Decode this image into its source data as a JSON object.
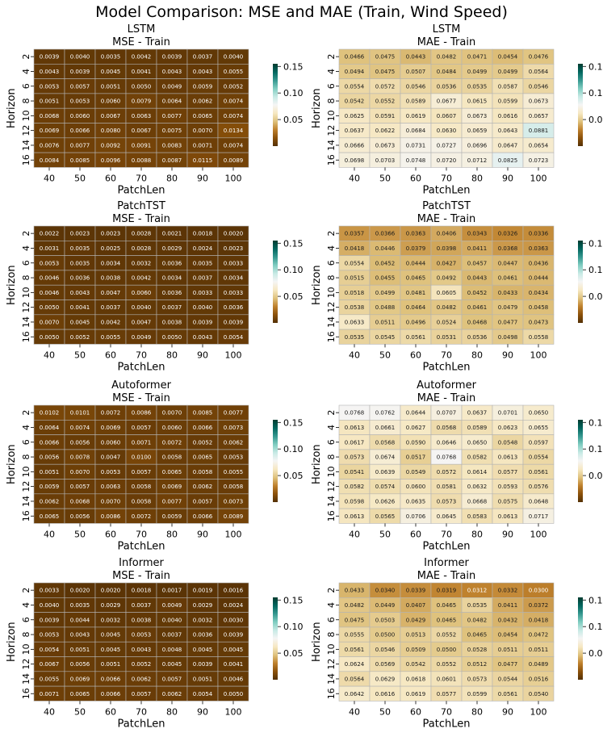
{
  "figure_title": "Model Comparison: MSE and MAE (Train, Wind Speed)",
  "shared_axes": {
    "xlabel": "PatchLen",
    "ylabel": "Horizon",
    "x_ticks": [
      "40",
      "50",
      "60",
      "70",
      "80",
      "90",
      "100"
    ],
    "y_ticks": [
      "2",
      "4",
      "6",
      "8",
      "10",
      "12",
      "14",
      "16"
    ]
  },
  "colorbar": {
    "ticks": [
      "0.15",
      "0.10",
      "0.05"
    ],
    "tick_values": [
      0.15,
      0.1,
      0.05
    ],
    "vmin": 0,
    "vmax": 0.155,
    "colormap": "BrBG",
    "colors": [
      "#543005",
      "#8c510a",
      "#bf812d",
      "#dfc27d",
      "#f6e8c3",
      "#f5f5f5",
      "#c7eae5",
      "#80cdc1",
      "#35978f",
      "#01665e",
      "#003c30"
    ]
  },
  "chart_data": [
    {
      "type": "heatmap",
      "model": "LSTM",
      "metric": "MSE - Train",
      "values": [
        [
          0.0039,
          0.004,
          0.0035,
          0.0042,
          0.0039,
          0.0037,
          0.004
        ],
        [
          0.0043,
          0.0039,
          0.0045,
          0.0041,
          0.0043,
          0.0043,
          0.0055
        ],
        [
          0.0053,
          0.0057,
          0.0051,
          0.005,
          0.0049,
          0.0059,
          0.0052
        ],
        [
          0.0051,
          0.0053,
          0.006,
          0.0079,
          0.0064,
          0.0062,
          0.0074
        ],
        [
          0.0068,
          0.006,
          0.0067,
          0.0063,
          0.0077,
          0.0065,
          0.0074
        ],
        [
          0.0069,
          0.0066,
          0.008,
          0.0067,
          0.0075,
          0.007,
          0.0134
        ],
        [
          0.0076,
          0.0077,
          0.0092,
          0.0091,
          0.0083,
          0.0071,
          0.0074
        ],
        [
          0.0084,
          0.0085,
          0.0096,
          0.0088,
          0.0087,
          0.0115,
          0.0089
        ]
      ]
    },
    {
      "type": "heatmap",
      "model": "LSTM",
      "metric": "MAE - Train",
      "values": [
        [
          0.0466,
          0.0475,
          0.0443,
          0.0482,
          0.0471,
          0.0454,
          0.0476
        ],
        [
          0.0494,
          0.0475,
          0.0507,
          0.0484,
          0.0499,
          0.0499,
          0.0564
        ],
        [
          0.0554,
          0.0572,
          0.0546,
          0.0536,
          0.0535,
          0.0587,
          0.0546
        ],
        [
          0.0542,
          0.0552,
          0.0589,
          0.0677,
          0.0615,
          0.0599,
          0.0673
        ],
        [
          0.0625,
          0.0591,
          0.0619,
          0.0607,
          0.0673,
          0.0616,
          0.0657
        ],
        [
          0.0637,
          0.0622,
          0.0684,
          0.063,
          0.0659,
          0.0643,
          0.0881
        ],
        [
          0.0666,
          0.0673,
          0.0731,
          0.0727,
          0.0696,
          0.0647,
          0.0654
        ],
        [
          0.0698,
          0.0703,
          0.0748,
          0.072,
          0.0712,
          0.0825,
          0.0723
        ]
      ]
    },
    {
      "type": "heatmap",
      "model": "PatchTST",
      "metric": "MSE - Train",
      "values": [
        [
          0.0022,
          0.0023,
          0.0023,
          0.0028,
          0.0021,
          0.0018,
          0.002
        ],
        [
          0.0031,
          0.0035,
          0.0025,
          0.0028,
          0.0029,
          0.0024,
          0.0023
        ],
        [
          0.0053,
          0.0035,
          0.0034,
          0.0032,
          0.0036,
          0.0035,
          0.0033
        ],
        [
          0.0046,
          0.0036,
          0.0038,
          0.0042,
          0.0034,
          0.0037,
          0.0034
        ],
        [
          0.0046,
          0.0043,
          0.0047,
          0.006,
          0.0036,
          0.0033,
          0.0033
        ],
        [
          0.005,
          0.0041,
          0.0037,
          0.004,
          0.0037,
          0.004,
          0.0036
        ],
        [
          0.007,
          0.0045,
          0.0042,
          0.0047,
          0.0038,
          0.0039,
          0.0039
        ],
        [
          0.005,
          0.0052,
          0.0055,
          0.0049,
          0.005,
          0.0043,
          0.0054
        ]
      ]
    },
    {
      "type": "heatmap",
      "model": "PatchTST",
      "metric": "MAE - Train",
      "values": [
        [
          0.0357,
          0.0366,
          0.0363,
          0.0406,
          0.0343,
          0.0326,
          0.0336
        ],
        [
          0.0418,
          0.0446,
          0.0379,
          0.0398,
          0.0411,
          0.0368,
          0.0363
        ],
        [
          0.0554,
          0.0452,
          0.0444,
          0.0427,
          0.0457,
          0.0447,
          0.0436
        ],
        [
          0.0515,
          0.0455,
          0.0465,
          0.0492,
          0.0443,
          0.0461,
          0.0444
        ],
        [
          0.0518,
          0.0499,
          0.0481,
          0.0605,
          0.0452,
          0.0433,
          0.0434
        ],
        [
          0.0538,
          0.0488,
          0.0464,
          0.0482,
          0.0461,
          0.0479,
          0.0458
        ],
        [
          0.0633,
          0.0511,
          0.0496,
          0.0524,
          0.0468,
          0.0477,
          0.0473
        ],
        [
          0.0535,
          0.0545,
          0.0561,
          0.0531,
          0.0536,
          0.0498,
          0.0558
        ]
      ]
    },
    {
      "type": "heatmap",
      "model": "Autoformer",
      "metric": "MSE - Train",
      "values": [
        [
          0.0102,
          0.0101,
          0.0072,
          0.0086,
          0.007,
          0.0085,
          0.0077
        ],
        [
          0.0064,
          0.0074,
          0.0069,
          0.0057,
          0.006,
          0.0066,
          0.0073
        ],
        [
          0.0066,
          0.0056,
          0.006,
          0.0071,
          0.0072,
          0.0052,
          0.0062
        ],
        [
          0.0056,
          0.0078,
          0.0047,
          0.01,
          0.0058,
          0.0065,
          0.0053
        ],
        [
          0.0051,
          0.007,
          0.0053,
          0.0057,
          0.0065,
          0.0058,
          0.0055
        ],
        [
          0.0059,
          0.0057,
          0.0063,
          0.0058,
          0.0069,
          0.0062,
          0.0058
        ],
        [
          0.0062,
          0.0068,
          0.007,
          0.0058,
          0.0077,
          0.0057,
          0.0073
        ],
        [
          0.0065,
          0.0056,
          0.0086,
          0.0072,
          0.0059,
          0.0066,
          0.0089
        ]
      ]
    },
    {
      "type": "heatmap",
      "model": "Autoformer",
      "metric": "MAE - Train",
      "values": [
        [
          0.0768,
          0.0762,
          0.0644,
          0.0707,
          0.0637,
          0.0701,
          0.065
        ],
        [
          0.0613,
          0.0661,
          0.0627,
          0.0568,
          0.0589,
          0.0623,
          0.0655
        ],
        [
          0.0617,
          0.0568,
          0.059,
          0.0646,
          0.065,
          0.0548,
          0.0597
        ],
        [
          0.0573,
          0.0674,
          0.0517,
          0.0768,
          0.0582,
          0.0613,
          0.0554
        ],
        [
          0.0541,
          0.0639,
          0.0549,
          0.0572,
          0.0614,
          0.0577,
          0.0561
        ],
        [
          0.0582,
          0.0574,
          0.06,
          0.0581,
          0.0632,
          0.0593,
          0.0576
        ],
        [
          0.0598,
          0.0626,
          0.0635,
          0.0573,
          0.0668,
          0.0575,
          0.0648
        ],
        [
          0.0613,
          0.0565,
          0.0706,
          0.0645,
          0.0583,
          0.0613,
          0.0717
        ]
      ]
    },
    {
      "type": "heatmap",
      "model": "Informer",
      "metric": "MSE - Train",
      "values": [
        [
          0.0033,
          0.002,
          0.002,
          0.0018,
          0.0017,
          0.0019,
          0.0016
        ],
        [
          0.004,
          0.0035,
          0.0029,
          0.0037,
          0.0049,
          0.0029,
          0.0024
        ],
        [
          0.0039,
          0.0044,
          0.0032,
          0.0038,
          0.004,
          0.0032,
          0.003
        ],
        [
          0.0053,
          0.0043,
          0.0045,
          0.0053,
          0.0037,
          0.0036,
          0.0039
        ],
        [
          0.0054,
          0.0051,
          0.0045,
          0.0043,
          0.0048,
          0.0045,
          0.0045
        ],
        [
          0.0067,
          0.0056,
          0.0051,
          0.0052,
          0.0045,
          0.0039,
          0.0041
        ],
        [
          0.0055,
          0.0069,
          0.0066,
          0.0062,
          0.0057,
          0.0051,
          0.0046
        ],
        [
          0.0071,
          0.0065,
          0.0066,
          0.0057,
          0.0062,
          0.0054,
          0.005
        ]
      ]
    },
    {
      "type": "heatmap",
      "model": "Informer",
      "metric": "MAE - Train",
      "values": [
        [
          0.0433,
          0.034,
          0.0339,
          0.0319,
          0.0312,
          0.0332,
          0.03
        ],
        [
          0.0482,
          0.0449,
          0.0407,
          0.0465,
          0.0535,
          0.0411,
          0.0372
        ],
        [
          0.0475,
          0.0503,
          0.0429,
          0.0465,
          0.0482,
          0.0432,
          0.0418
        ],
        [
          0.0555,
          0.05,
          0.0513,
          0.0552,
          0.0465,
          0.0454,
          0.0472
        ],
        [
          0.0561,
          0.0546,
          0.0509,
          0.05,
          0.0528,
          0.0511,
          0.0511
        ],
        [
          0.0624,
          0.0569,
          0.0542,
          0.0552,
          0.0512,
          0.0477,
          0.0489
        ],
        [
          0.0564,
          0.0629,
          0.0618,
          0.0601,
          0.0573,
          0.0544,
          0.0516
        ],
        [
          0.0642,
          0.0616,
          0.0619,
          0.0577,
          0.0599,
          0.0561,
          0.054
        ]
      ]
    }
  ]
}
